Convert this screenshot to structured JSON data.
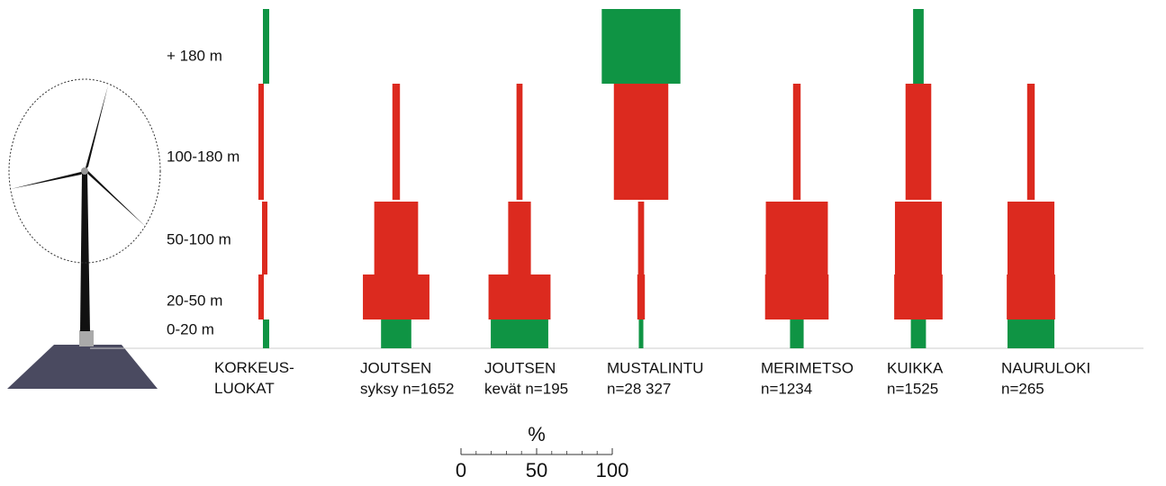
{
  "chart_data": {
    "type": "kite",
    "axis_label": "KORKEUS-LUOKAT",
    "categories": [
      "0-20 m",
      "20-50 m",
      "50-100 m",
      "100-180 m",
      "+ 180 m"
    ],
    "category_colors": [
      "#0f9444",
      "#dc2a1f",
      "#dc2a1f",
      "#dc2a1f",
      "#0f9444"
    ],
    "series": [
      {
        "name": "JOUTSEN",
        "sample": "syksy n=1652",
        "values": [
          20,
          44,
          29,
          5,
          0
        ]
      },
      {
        "name": "JOUTSEN",
        "sample": "kevät n=195",
        "values": [
          38,
          41,
          15,
          4,
          0
        ]
      },
      {
        "name": "MUSTALINTU",
        "sample": "n=28 327",
        "values": [
          3,
          5,
          4,
          36,
          52
        ]
      },
      {
        "name": "MERIMETSO",
        "sample": "n=1234",
        "values": [
          9,
          42,
          41,
          5,
          0
        ]
      },
      {
        "name": "KUIKKA",
        "sample": "n=1525",
        "values": [
          10,
          32,
          31,
          17,
          7
        ]
      },
      {
        "name": "NAURULOKI",
        "sample": "n=265",
        "values": [
          31,
          32,
          31,
          5,
          0
        ]
      }
    ],
    "xlabel": "%",
    "xlim": [
      0,
      100
    ],
    "xticks": [
      0,
      50,
      100
    ]
  }
}
